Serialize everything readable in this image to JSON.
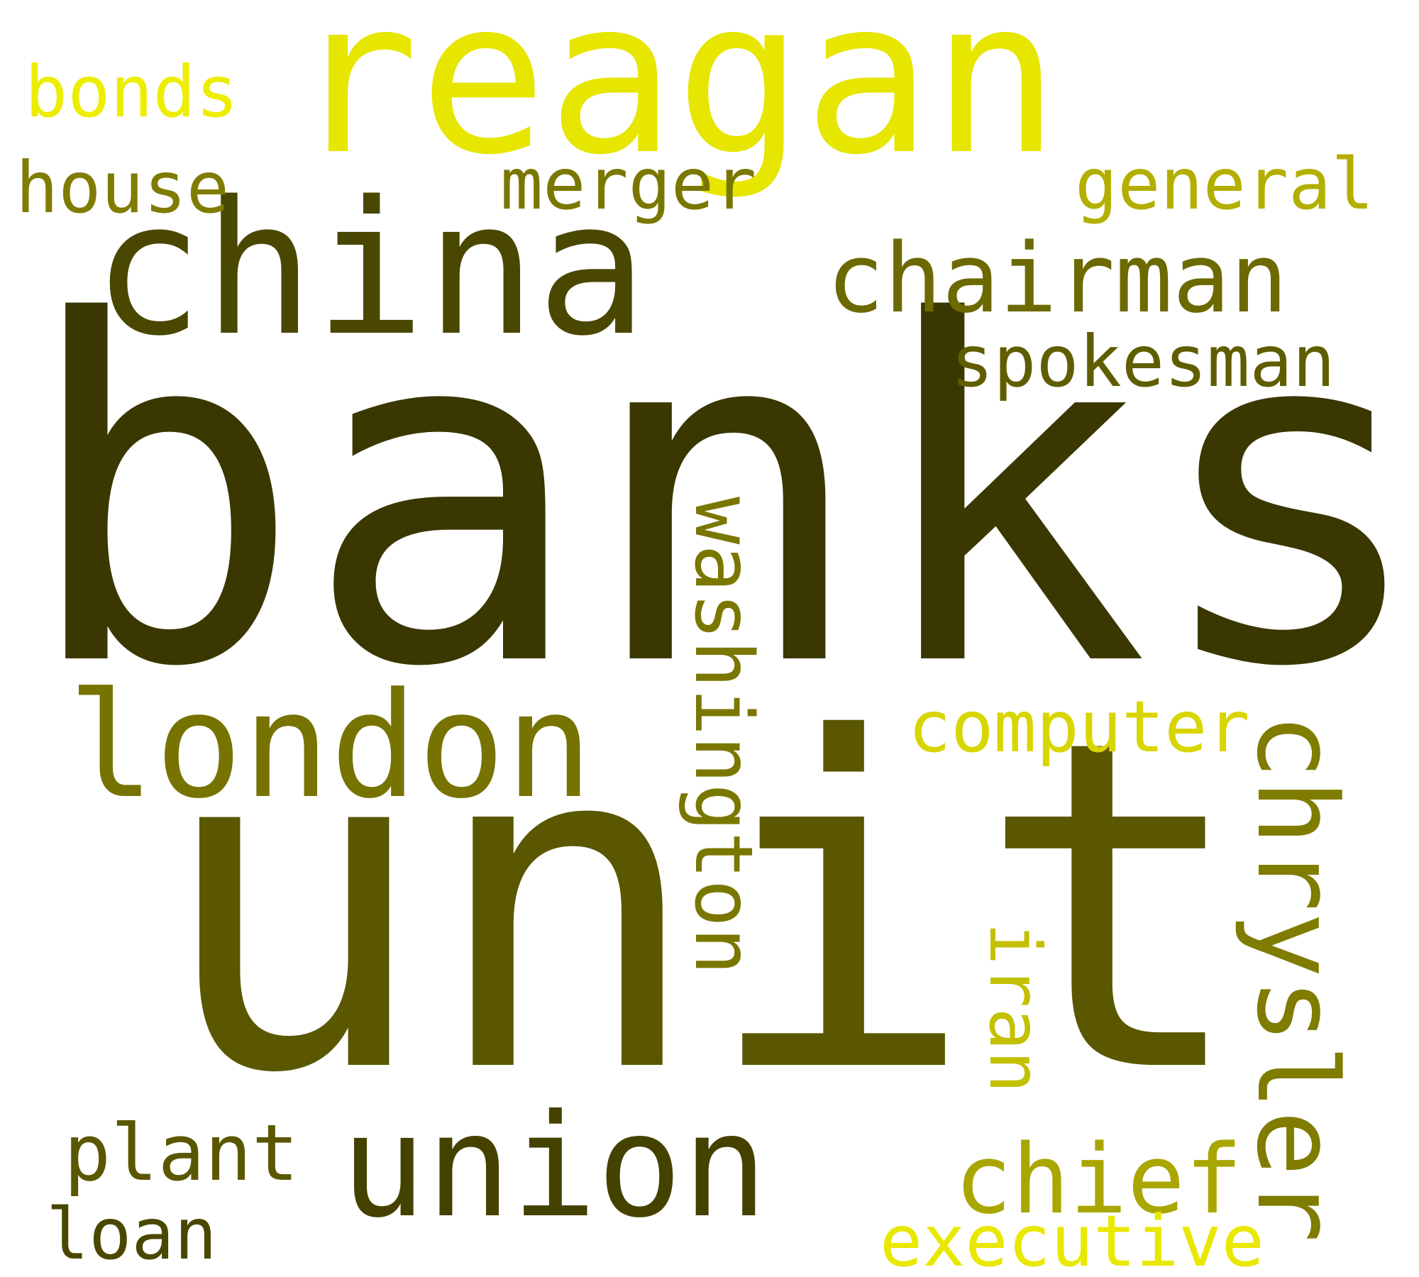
{
  "words": {
    "banks": {
      "text": "banks",
      "color": "#3a3700"
    },
    "unit": {
      "text": "unit",
      "color": "#5a5700"
    },
    "reagan": {
      "text": "reagan",
      "color": "#e6e600"
    },
    "china": {
      "text": "china",
      "color": "#4a4700"
    },
    "london": {
      "text": "london",
      "color": "#777300"
    },
    "union": {
      "text": "union",
      "color": "#454200"
    },
    "chrysler": {
      "text": "chrysler",
      "color": "#7f7c00"
    },
    "chairman": {
      "text": "chairman",
      "color": "#6c6900"
    },
    "washington": {
      "text": "washington",
      "color": "#7a7700"
    },
    "chief": {
      "text": "chief",
      "color": "#aaa600"
    },
    "spokesman": {
      "text": "spokesman",
      "color": "#605d00"
    },
    "general": {
      "text": "general",
      "color": "#b3af00"
    },
    "merger": {
      "text": "merger",
      "color": "#7a7700"
    },
    "house": {
      "text": "house",
      "color": "#7f7c00"
    },
    "computer": {
      "text": "computer",
      "color": "#d8d500"
    },
    "bonds": {
      "text": "bonds",
      "color": "#eded00"
    },
    "plant": {
      "text": "plant",
      "color": "#5a5700"
    },
    "loan": {
      "text": "loan",
      "color": "#4a4700"
    },
    "executive": {
      "text": "executive",
      "color": "#e8e800"
    },
    "iran": {
      "text": "iran",
      "color": "#c3c000"
    }
  }
}
